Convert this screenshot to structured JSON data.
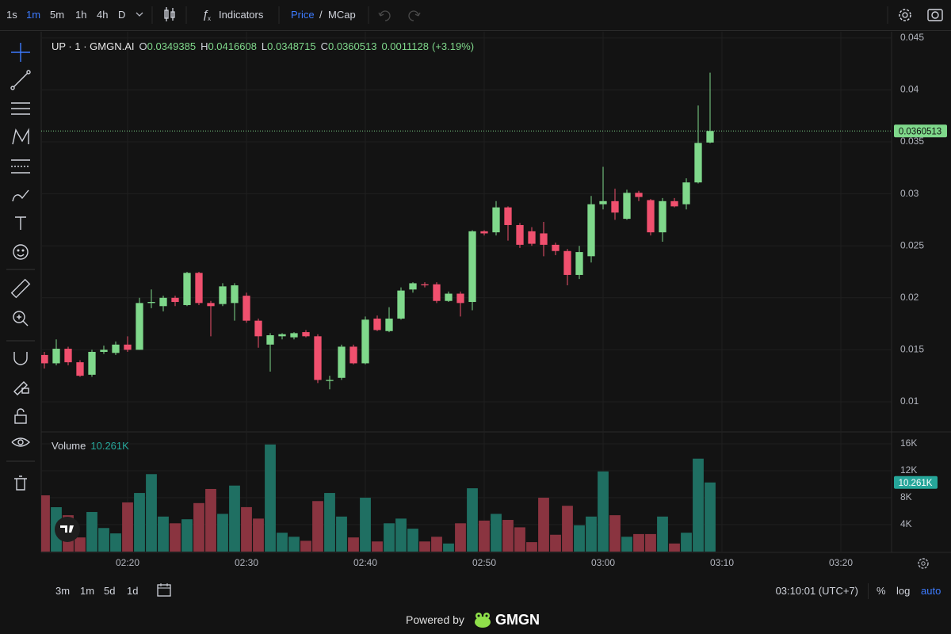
{
  "toolbar": {
    "intervals": [
      "1s",
      "1m",
      "5m",
      "1h",
      "4h",
      "D"
    ],
    "indicators": "Indicators",
    "price": "Price",
    "separator": "/",
    "mcap": "MCap"
  },
  "chart_data": {
    "type": "candlestick",
    "symbol": "UP · 1 · GMGN.AI",
    "legend": {
      "open_prefix": "O",
      "high_prefix": "H",
      "low_prefix": "L",
      "close_prefix": "C",
      "change": 0.0011128,
      "change_pct_label": "(+3.19%)"
    },
    "up_color": "#7fd88b",
    "down_color": "#f0506e",
    "grid": true,
    "x": [
      "02:13",
      "02:14",
      "02:15",
      "02:16",
      "02:17",
      "02:18",
      "02:19",
      "02:20",
      "02:21",
      "02:22",
      "02:23",
      "02:24",
      "02:25",
      "02:26",
      "02:27",
      "02:28",
      "02:29",
      "02:30",
      "02:31",
      "02:32",
      "02:33",
      "02:34",
      "02:35",
      "02:36",
      "02:37",
      "02:38",
      "02:39",
      "02:40",
      "02:41",
      "02:42",
      "02:43",
      "02:44",
      "02:45",
      "02:46",
      "02:47",
      "02:48",
      "02:49",
      "02:50",
      "02:51",
      "02:52",
      "02:53",
      "02:54",
      "02:55",
      "02:56",
      "02:57",
      "02:58",
      "02:59",
      "03:00",
      "03:01",
      "03:02",
      "03:03",
      "03:04",
      "03:05",
      "03:06",
      "03:07",
      "03:08",
      "03:09"
    ],
    "open": [
      0.0145,
      0.0137,
      0.0151,
      0.0138,
      0.0126,
      0.0148,
      0.0147,
      0.0155,
      0.015,
      0.0195,
      0.0192,
      0.02,
      0.0193,
      0.0224,
      0.0195,
      0.0194,
      0.0195,
      0.0202,
      0.0178,
      0.0155,
      0.0163,
      0.0162,
      0.0167,
      0.0163,
      0.012,
      0.0123,
      0.0153,
      0.0137,
      0.018,
      0.0168,
      0.018,
      0.0208,
      0.0213,
      0.0213,
      0.0197,
      0.0204,
      0.0196,
      0.0264,
      0.0263,
      0.0287,
      0.027,
      0.0264,
      0.0262,
      0.0251,
      0.0245,
      0.0222,
      0.024,
      0.029,
      0.0293,
      0.0276,
      0.0301,
      0.0294,
      0.0263,
      0.0293,
      0.029,
      0.0311,
      0.0349385
    ],
    "high": [
      0.0148,
      0.016,
      0.0153,
      0.014,
      0.015,
      0.0154,
      0.0158,
      0.0163,
      0.02,
      0.0208,
      0.0202,
      0.0202,
      0.0225,
      0.0225,
      0.0197,
      0.0214,
      0.0214,
      0.0205,
      0.018,
      0.0166,
      0.0166,
      0.0167,
      0.0169,
      0.0165,
      0.0125,
      0.0155,
      0.0155,
      0.0182,
      0.0183,
      0.0191,
      0.021,
      0.0215,
      0.0215,
      0.0215,
      0.0206,
      0.0206,
      0.0265,
      0.0265,
      0.0293,
      0.0288,
      0.0272,
      0.0268,
      0.0273,
      0.0253,
      0.0247,
      0.025,
      0.0298,
      0.0326,
      0.0305,
      0.0304,
      0.0303,
      0.0295,
      0.0296,
      0.0296,
      0.0315,
      0.0385,
      0.0416608
    ],
    "low": [
      0.0132,
      0.0135,
      0.0135,
      0.0124,
      0.0124,
      0.0146,
      0.0145,
      0.0148,
      0.015,
      0.019,
      0.0187,
      0.0192,
      0.0192,
      0.0193,
      0.0163,
      0.0192,
      0.0178,
      0.0176,
      0.0152,
      0.0129,
      0.016,
      0.016,
      0.0162,
      0.0118,
      0.0112,
      0.0121,
      0.0136,
      0.0136,
      0.0168,
      0.0167,
      0.0179,
      0.0205,
      0.021,
      0.0195,
      0.0196,
      0.0182,
      0.0188,
      0.026,
      0.026,
      0.0255,
      0.0248,
      0.025,
      0.024,
      0.0241,
      0.0212,
      0.0218,
      0.0234,
      0.0285,
      0.0275,
      0.0275,
      0.0293,
      0.026,
      0.0254,
      0.0287,
      0.0285,
      0.031,
      0.0348715
    ],
    "close": [
      0.0137,
      0.0151,
      0.0138,
      0.0125,
      0.0148,
      0.015,
      0.0155,
      0.015,
      0.0195,
      0.0196,
      0.02,
      0.0196,
      0.0224,
      0.0195,
      0.0192,
      0.0211,
      0.0212,
      0.0178,
      0.0163,
      0.0164,
      0.0165,
      0.0166,
      0.0163,
      0.0121,
      0.0121,
      0.0153,
      0.0137,
      0.0179,
      0.0169,
      0.018,
      0.0207,
      0.0214,
      0.0212,
      0.0197,
      0.0204,
      0.0195,
      0.0264,
      0.0262,
      0.0287,
      0.027,
      0.0251,
      0.0252,
      0.0251,
      0.0245,
      0.0222,
      0.0244,
      0.029,
      0.0293,
      0.0282,
      0.0301,
      0.0297,
      0.0263,
      0.0293,
      0.0288,
      0.0311,
      0.0349,
      0.0360513
    ],
    "xlim": [
      "02:13",
      "03:24"
    ],
    "xticks": [
      "02:20",
      "02:30",
      "02:40",
      "02:50",
      "03:00",
      "03:10",
      "03:20"
    ],
    "ylim": [
      0.0071,
      0.0456
    ],
    "yticks": [
      0.01,
      0.015,
      0.02,
      0.025,
      0.03,
      0.035,
      0.04,
      0.045
    ],
    "volume": {
      "name": "Volume",
      "up_color": "#1f6f62",
      "down_color": "#8a3440",
      "values": [
        8350,
        6590,
        5400,
        2100,
        5880,
        3500,
        2700,
        7300,
        8700,
        11500,
        5200,
        4200,
        4800,
        7200,
        9300,
        5600,
        9800,
        6600,
        4900,
        15900,
        2800,
        2200,
        1600,
        7500,
        8700,
        5200,
        2100,
        8000,
        1500,
        4200,
        4900,
        3400,
        1500,
        2200,
        1200,
        4200,
        9400,
        4600,
        5600,
        4700,
        3600,
        1400,
        8000,
        2500,
        6800,
        3900,
        5200,
        11900,
        5400,
        2200,
        2600,
        2600,
        5200,
        1200,
        2800,
        13800,
        10261
      ],
      "current": {
        "value": 10261,
        "label": "10.261K"
      },
      "ylim": [
        0,
        17650
      ],
      "yticks": [
        {
          "value": 4000,
          "label": "4K"
        },
        {
          "value": 8000,
          "label": "8K"
        },
        {
          "value": 12000,
          "label": "12K"
        },
        {
          "value": 16000,
          "label": "16K"
        }
      ]
    }
  },
  "bottom_bar": {
    "ranges": [
      "3m",
      "1m",
      "5d",
      "1d"
    ],
    "clock": "03:10:01 (UTC+7)",
    "percent": "%",
    "log": "log",
    "auto": "auto"
  },
  "footer": {
    "powered_by": "Powered by",
    "brand": "GMGN"
  }
}
